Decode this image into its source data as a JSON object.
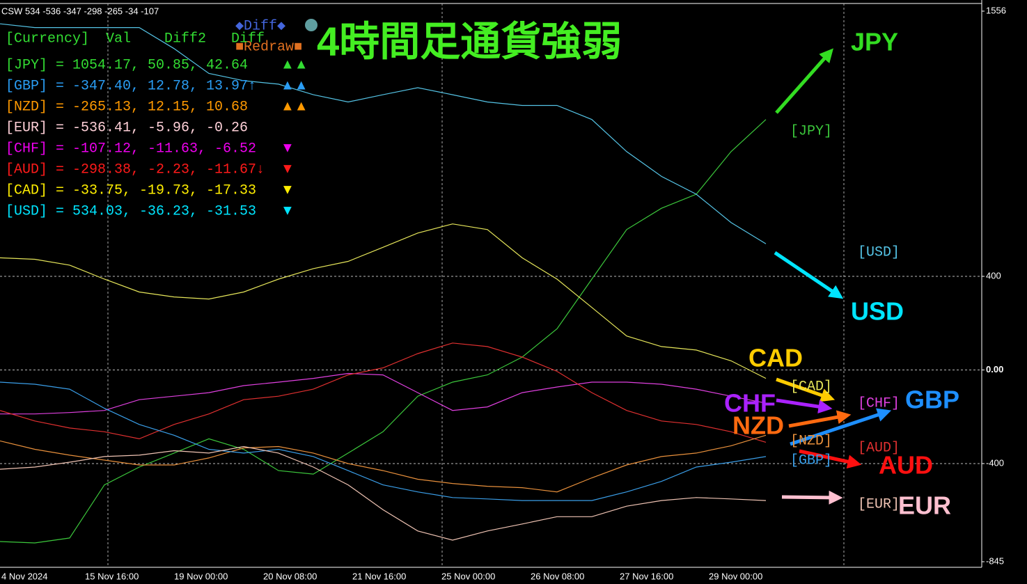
{
  "header": "CSW 534 -536 -347 -298 -265 -34 -107",
  "controls": {
    "diff": "◆Diff◆",
    "redraw": "■Redraw■"
  },
  "table": {
    "header": "[Currency]  Val    Diff2   Diff",
    "rows": [
      {
        "text": "[JPY] = 1054.17,  50.85,  42.64",
        "marker": "▲▲",
        "color": "#33dd33"
      },
      {
        "text": "[GBP] = -347.40,  12.78,  13.97↑",
        "marker": "▲▲",
        "color": "#2a9df4"
      },
      {
        "text": "[NZD] = -265.13,  12.15,  10.68",
        "marker": "▲▲",
        "color": "#ff9900"
      },
      {
        "text": "[EUR] = -536.41,  -5.96,  -0.26",
        "marker": "",
        "color": "#ffd0d8"
      },
      {
        "text": "[CHF] = -107.12, -11.63,  -6.52",
        "marker": "▼",
        "color": "#ee00ee"
      },
      {
        "text": "[AUD] = -298.38,  -2.23, -11.67↓",
        "marker": "▼",
        "color": "#ff1a1a"
      },
      {
        "text": "[CAD] =   -33.75, -19.73, -17.33",
        "marker": "▼",
        "color": "#ffee00"
      },
      {
        "text": "[USD] =  534.03, -36.23, -31.53",
        "marker": "▼",
        "color": "#00e5ff"
      }
    ]
  },
  "chart_data": {
    "type": "line",
    "title": "4時間足通貨強弱",
    "ylim": [
      -845,
      1556
    ],
    "yticks": [
      -845,
      -400,
      {
        "value": 0,
        "label": "0.00"
      },
      400,
      1556
    ],
    "xlabels": [
      "4 Nov 2024",
      "15 Nov 16:00",
      "19 Nov 00:00",
      "20 Nov 08:00",
      "21 Nov 16:00",
      "25 Nov 00:00",
      "26 Nov 08:00",
      "27 Nov 16:00",
      "29 Nov 00:00"
    ],
    "grid": true,
    "series": [
      {
        "name": "JPY",
        "label": "[JPY]",
        "color": "#3cc83c",
        "values": [
          -733,
          -739,
          -718,
          -491,
          -415,
          -355,
          -294,
          -339,
          -430,
          -445,
          -355,
          -264,
          -112,
          -52,
          -21,
          55,
          176,
          388,
          600,
          691,
          751,
          933,
          1070
        ]
      },
      {
        "name": "USD",
        "label": "[USD]",
        "color": "#55c4e6",
        "values": [
          1479,
          1463,
          1463,
          1463,
          1463,
          1373,
          1267,
          1236,
          1221,
          1176,
          1145,
          1176,
          1206,
          1176,
          1145,
          1130,
          1130,
          1070,
          933,
          827,
          751,
          630,
          539
        ]
      },
      {
        "name": "CAD",
        "label": "[CAD]",
        "color": "#e6e65a",
        "values": [
          479,
          473,
          448,
          388,
          333,
          312,
          303,
          333,
          388,
          433,
          464,
          524,
          585,
          624,
          600,
          479,
          388,
          267,
          145,
          100,
          85,
          39,
          -36
        ]
      },
      {
        "name": "CHF",
        "label": "[CHF]",
        "color": "#e040e0",
        "values": [
          -188,
          -188,
          -182,
          -173,
          -127,
          -112,
          -97,
          -67,
          -52,
          -36,
          -15,
          -21,
          -97,
          -173,
          -158,
          -97,
          -73,
          -52,
          -52,
          -61,
          -82,
          -112,
          -142
        ]
      },
      {
        "name": "AUD",
        "label": "[AUD]",
        "color": "#e03030",
        "values": [
          -173,
          -218,
          -248,
          -264,
          -294,
          -233,
          -188,
          -127,
          -112,
          -82,
          -21,
          9,
          70,
          115,
          100,
          55,
          -6,
          -97,
          -173,
          -218,
          -233,
          -264,
          -309
        ]
      },
      {
        "name": "NZD",
        "label": "[NZD]",
        "color": "#e8903c",
        "values": [
          -303,
          -339,
          -364,
          -385,
          -406,
          -406,
          -376,
          -333,
          -327,
          -355,
          -400,
          -430,
          -467,
          -485,
          -497,
          -503,
          -521,
          -461,
          -406,
          -370,
          -355,
          -324,
          -279
        ]
      },
      {
        "name": "GBP",
        "label": "[GBP]",
        "color": "#3a9ee8",
        "values": [
          -52,
          -61,
          -82,
          -164,
          -233,
          -279,
          -339,
          -355,
          -339,
          -370,
          -430,
          -491,
          -521,
          -545,
          -551,
          -558,
          -558,
          -558,
          -521,
          -476,
          -415,
          -394,
          -370
        ]
      },
      {
        "name": "EUR",
        "label": "[EUR]",
        "color": "#f0c4b4",
        "values": [
          -424,
          -415,
          -394,
          -370,
          -364,
          -345,
          -355,
          -327,
          -355,
          -415,
          -491,
          -597,
          -688,
          -727,
          -688,
          -658,
          -627,
          -627,
          -582,
          -558,
          -545,
          -551,
          -558
        ]
      }
    ]
  }
}
